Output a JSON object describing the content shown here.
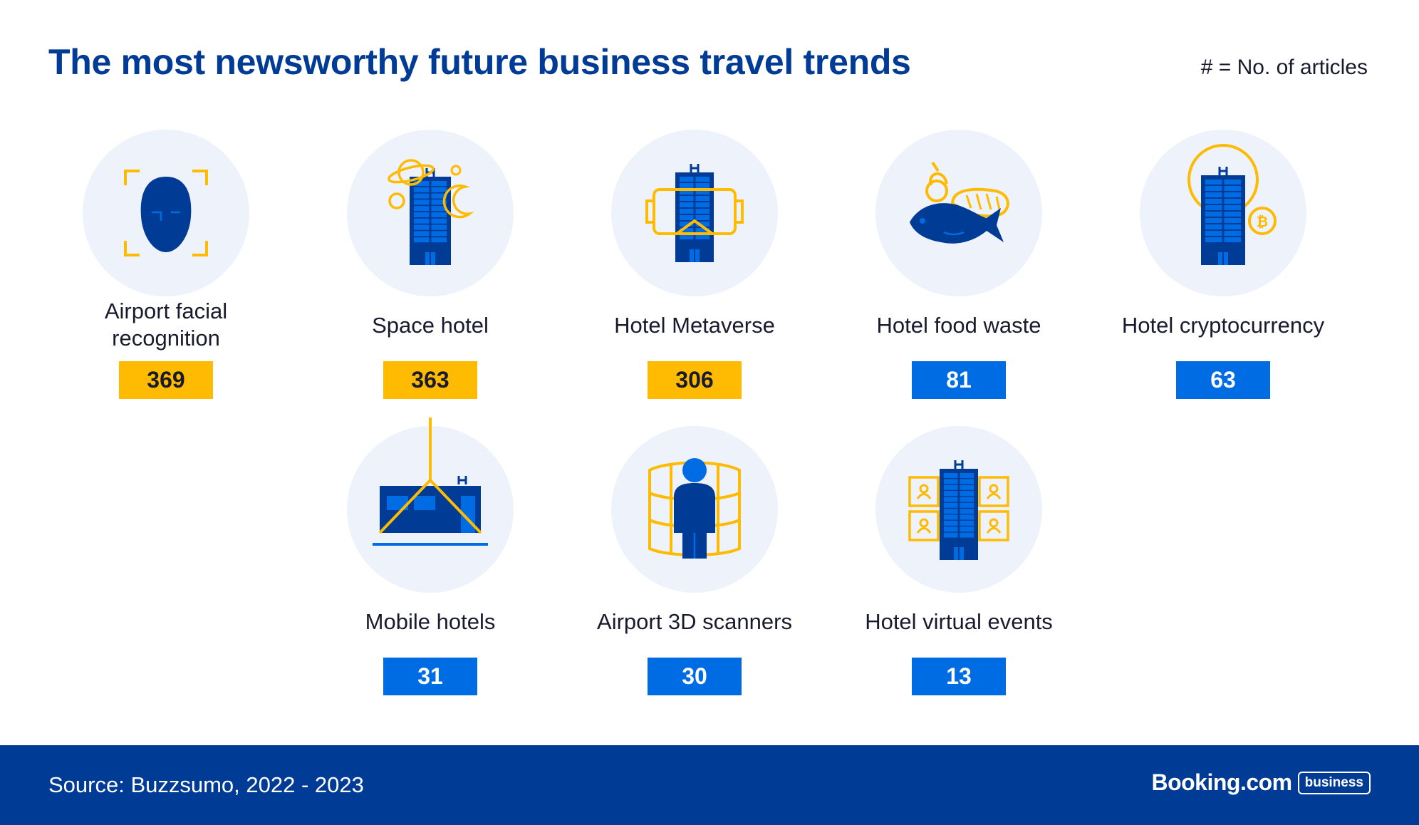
{
  "header": {
    "title": "The most newsworthy future business travel trends",
    "legend_note": "# = No. of articles"
  },
  "footer": {
    "source": "Source: Buzzsumo, 2022 - 2023",
    "logo_main": "Booking.com",
    "logo_tag": "business"
  },
  "colors": {
    "navy": "#003b95",
    "blue": "#006ce4",
    "yellow": "#febb02",
    "circle": "#eef3fb"
  },
  "chart_data": {
    "type": "table",
    "title": "The most newsworthy future business travel trends",
    "categories": [
      "Airport facial recognition",
      "Space hotel",
      "Hotel Metaverse",
      "Hotel food waste",
      "Hotel cryptocurrency",
      "Mobile hotels",
      "Airport 3D scanners",
      "Hotel virtual events"
    ],
    "values": [
      369,
      363,
      306,
      81,
      63,
      31,
      30,
      13
    ],
    "highlight": [
      "yellow",
      "yellow",
      "yellow",
      "blue",
      "blue",
      "blue",
      "blue",
      "blue"
    ],
    "icons": [
      "face-scan-icon",
      "space-hotel-icon",
      "metaverse-hotel-icon",
      "food-waste-icon",
      "crypto-hotel-icon",
      "mobile-hotel-icon",
      "3d-scanner-icon",
      "virtual-events-icon"
    ],
    "labels": [
      "Airport facial\nrecognition",
      "Space hotel",
      "Hotel Metaverse",
      "Hotel food waste",
      "Hotel cryptocurrency",
      "Mobile hotels",
      "Airport 3D scanners",
      "Hotel virtual events"
    ]
  }
}
